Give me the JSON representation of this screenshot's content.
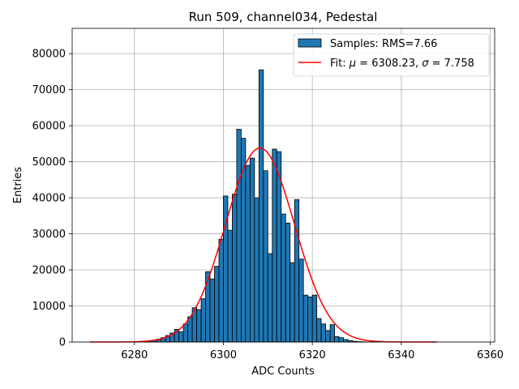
{
  "colors": {
    "bars": "#1f77b4",
    "fit_line": "#ff0000",
    "grid": "#b0b0b0",
    "axes": "#000000"
  },
  "chart_data": {
    "type": "bar",
    "title": "Run 509, channel034, Pedestal",
    "xlabel": "ADC Counts",
    "ylabel": "Entries",
    "xlim": [
      6266,
      6361
    ],
    "ylim": [
      0,
      87000
    ],
    "grid": true,
    "legend_position": "top-right",
    "x_ticks": [
      6280,
      6300,
      6320,
      6340,
      6360
    ],
    "y_ticks": [
      0,
      10000,
      20000,
      30000,
      40000,
      50000,
      60000,
      70000,
      80000
    ],
    "bin_width": 1,
    "bin_starts": [
      6282,
      6283,
      6284,
      6285,
      6286,
      6287,
      6288,
      6289,
      6290,
      6291,
      6292,
      6293,
      6294,
      6295,
      6296,
      6297,
      6298,
      6299,
      6300,
      6301,
      6302,
      6303,
      6304,
      6305,
      6306,
      6307,
      6308,
      6309,
      6310,
      6311,
      6312,
      6313,
      6314,
      6315,
      6316,
      6317,
      6318,
      6319,
      6320,
      6321,
      6322,
      6323,
      6324,
      6325,
      6326,
      6327,
      6328,
      6329,
      6330,
      6331,
      6332,
      6333,
      6334,
      6335
    ],
    "counts": [
      100,
      300,
      500,
      800,
      1200,
      1800,
      2500,
      3500,
      2800,
      5000,
      7000,
      9500,
      9000,
      12000,
      19500,
      17500,
      21000,
      28500,
      40500,
      31000,
      41000,
      59000,
      56500,
      49000,
      51000,
      40000,
      75500,
      47500,
      24500,
      53500,
      52800,
      35500,
      33000,
      22000,
      39500,
      23000,
      13000,
      12500,
      13000,
      6500,
      5000,
      3200,
      4800,
      1500,
      1200,
      700,
      400,
      200,
      100,
      50,
      20,
      10,
      5,
      2
    ],
    "series": [
      {
        "name": "Samples: RMS=7.66",
        "kind": "histogram"
      },
      {
        "name": "Fit",
        "kind": "gaussian",
        "mu": 6308.23,
        "sigma": 7.758,
        "amplitude": 53800,
        "x_range": [
          6270,
          6348
        ]
      }
    ],
    "legend": {
      "samples_label": "Samples: RMS=7.66",
      "fit_prefix": "Fit: ",
      "mu_symbol": "μ",
      "mu_text": " = 6308.23, ",
      "sigma_symbol": "σ",
      "sigma_text": " = 7.758"
    }
  }
}
